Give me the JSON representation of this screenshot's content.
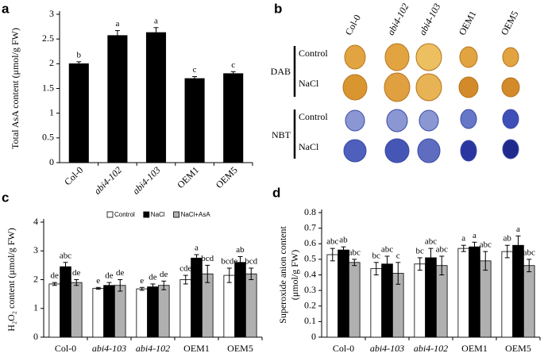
{
  "chart_data": [
    {
      "type": "bar",
      "panel_label": "a",
      "ylabel": "Total AsA content (μmol/g FW)",
      "categories": [
        "Col-0",
        "abi4-102",
        "abi4-103",
        "OEM1",
        "OEM5"
      ],
      "values": [
        2.0,
        2.57,
        2.63,
        1.7,
        1.8
      ],
      "errors": [
        0.04,
        0.1,
        0.1,
        0.04,
        0.04
      ],
      "annotations": [
        "b",
        "a",
        "a",
        "c",
        "c"
      ],
      "color": "#000000",
      "ylim": [
        0,
        3
      ],
      "yticks": [
        0,
        0.5,
        1,
        1.5,
        2,
        2.5,
        3
      ]
    },
    {
      "type": "bar",
      "panel_label": "c",
      "ylabel": "H₂O₂ content (μmol/g FW)",
      "categories": [
        "Col-0",
        "abi4-103",
        "abi4-102",
        "OEM1",
        "OEM5"
      ],
      "series": [
        {
          "name": "Control",
          "color": "#ffffff",
          "values": [
            1.85,
            1.7,
            1.68,
            2.0,
            2.15
          ],
          "errors": [
            0.05,
            0.03,
            0.05,
            0.15,
            0.25
          ],
          "annotations": [
            "de",
            "e",
            "e",
            "cde",
            "bcde"
          ]
        },
        {
          "name": "NaCl",
          "color": "#000000",
          "values": [
            2.45,
            1.8,
            1.75,
            2.75,
            2.6
          ],
          "errors": [
            0.15,
            0.1,
            0.1,
            0.12,
            0.2
          ],
          "annotations": [
            "abc",
            "de",
            "de",
            "a",
            "ab"
          ]
        },
        {
          "name": "NaCl+AsA",
          "color": "#b0b0b0",
          "values": [
            1.9,
            1.8,
            1.8,
            2.2,
            2.2
          ],
          "errors": [
            0.1,
            0.2,
            0.15,
            0.3,
            0.2
          ],
          "annotations": [
            "de",
            "de",
            "de",
            "bcd",
            "bcd"
          ]
        }
      ],
      "legend": true,
      "ylim": [
        0,
        4
      ],
      "yticks": [
        0,
        1,
        2,
        3,
        4
      ]
    },
    {
      "type": "bar",
      "panel_label": "d",
      "ylabel": [
        "Superoxide anion content",
        "(μmol/g FW)"
      ],
      "categories": [
        "Col-0",
        "abi4-103",
        "abi4-102",
        "OEM1",
        "OEM5"
      ],
      "series": [
        {
          "color": "#ffffff",
          "values": [
            0.53,
            0.44,
            0.47,
            0.57,
            0.55
          ],
          "errors": [
            0.04,
            0.04,
            0.04,
            0.02,
            0.04
          ],
          "annotations": [
            "abc",
            "bc",
            "bc",
            "a",
            "ab"
          ]
        },
        {
          "color": "#000000",
          "values": [
            0.56,
            0.47,
            0.51,
            0.58,
            0.59
          ],
          "errors": [
            0.02,
            0.05,
            0.06,
            0.03,
            0.06
          ],
          "annotations": [
            "ab",
            "abc",
            "abc",
            "a",
            "a"
          ]
        },
        {
          "color": "#b0b0b0",
          "values": [
            0.48,
            0.41,
            0.46,
            0.49,
            0.46
          ],
          "errors": [
            0.02,
            0.07,
            0.06,
            0.06,
            0.04
          ],
          "annotations": [
            "abc",
            "c",
            "abc",
            "abc",
            "abc"
          ]
        }
      ],
      "ylim": [
        0,
        0.8
      ],
      "yticks": [
        0,
        0.1,
        0.2,
        0.3,
        0.4,
        0.5,
        0.6,
        0.7,
        0.8
      ]
    }
  ],
  "panel_b": {
    "panel_label": "b",
    "columns": [
      "Col-0",
      "abi4-102",
      "abi4-103",
      "OEM1",
      "OEM5"
    ],
    "groups": [
      {
        "name": "DAB",
        "rows": [
          "Control",
          "NaCl"
        ]
      },
      {
        "name": "NBT",
        "rows": [
          "Control",
          "NaCl"
        ]
      }
    ]
  }
}
